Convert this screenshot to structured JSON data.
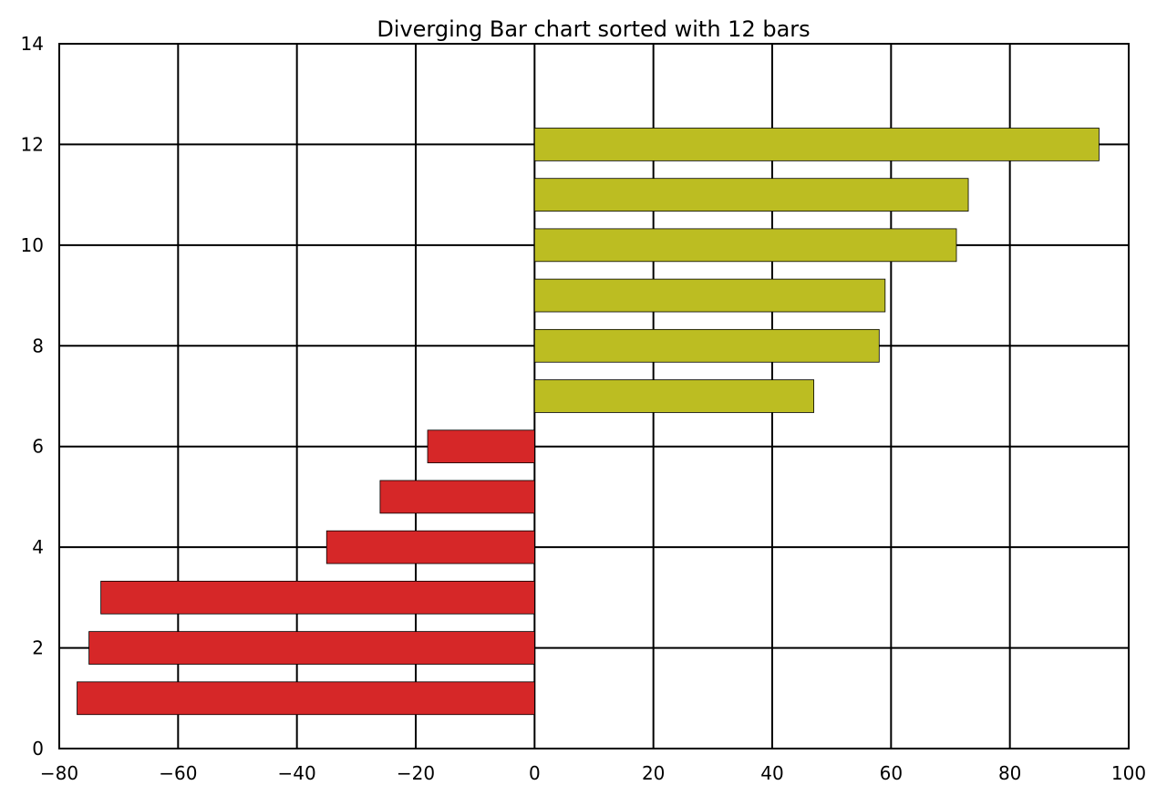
{
  "chart_data": {
    "type": "bar",
    "orientation": "horizontal",
    "title": "Diverging Bar chart sorted with 12 bars",
    "xlabel": "",
    "ylabel": "",
    "xlim": [
      -80,
      100
    ],
    "ylim": [
      0,
      14
    ],
    "xticks": [
      -80,
      -60,
      -40,
      -20,
      0,
      20,
      40,
      60,
      80,
      100
    ],
    "xtick_labels": [
      "−80",
      "−60",
      "−40",
      "−20",
      "0",
      "20",
      "40",
      "60",
      "80",
      "100"
    ],
    "yticks": [
      0,
      2,
      4,
      6,
      8,
      10,
      12,
      14
    ],
    "ytick_labels": [
      "0",
      "2",
      "4",
      "6",
      "8",
      "10",
      "12",
      "14"
    ],
    "grid": true,
    "legend": "none",
    "colors": {
      "negative": "#d62728",
      "positive": "#bcbd22",
      "grid": "#000000",
      "bar_edge": "#000000"
    },
    "bars": [
      {
        "y": 1,
        "value": -77
      },
      {
        "y": 2,
        "value": -75
      },
      {
        "y": 3,
        "value": -73
      },
      {
        "y": 4,
        "value": -35
      },
      {
        "y": 5,
        "value": -26
      },
      {
        "y": 6,
        "value": -18
      },
      {
        "y": 7,
        "value": 47
      },
      {
        "y": 8,
        "value": 58
      },
      {
        "y": 9,
        "value": 59
      },
      {
        "y": 10,
        "value": 71
      },
      {
        "y": 11,
        "value": 73
      },
      {
        "y": 12,
        "value": 95
      }
    ],
    "bar_height": 0.65
  }
}
